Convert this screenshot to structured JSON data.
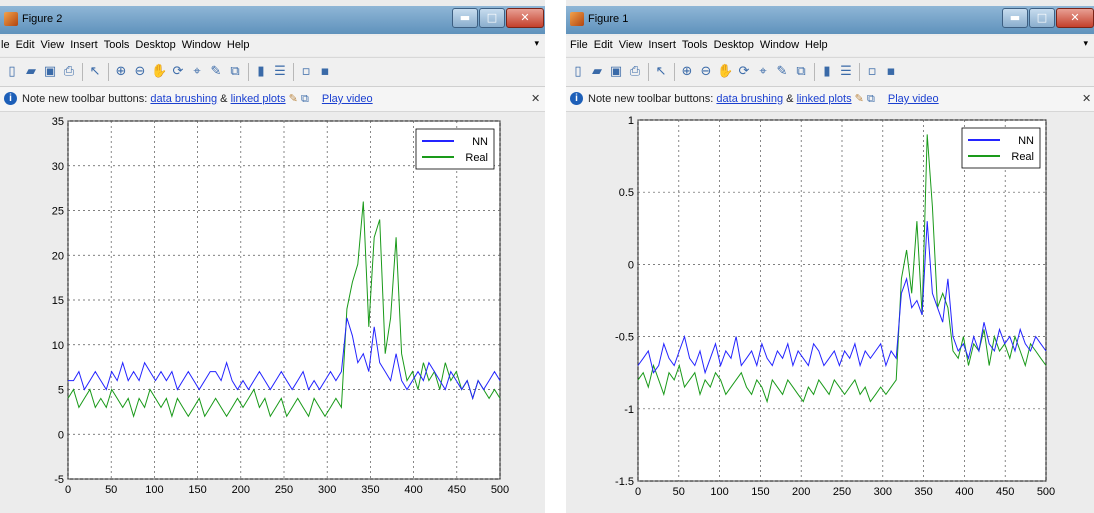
{
  "windows": [
    {
      "title": "Figure 2",
      "menu": [
        "le",
        "Edit",
        "View",
        "Insert",
        "Tools",
        "Desktop",
        "Window",
        "Help"
      ],
      "note": {
        "prefix": "Note new toolbar buttons:",
        "link1": "data brushing",
        "amp": "&",
        "link2": "linked plots",
        "video": "Play video"
      },
      "chart_data": {
        "type": "line",
        "xlim": [
          0,
          500
        ],
        "ylim": [
          -5,
          35
        ],
        "xticks": [
          0,
          50,
          100,
          150,
          200,
          250,
          300,
          350,
          400,
          450,
          500
        ],
        "yticks": [
          -5,
          0,
          5,
          10,
          15,
          20,
          25,
          30,
          35
        ],
        "grid": true,
        "legend_position": "top-right",
        "series": [
          {
            "name": "NN",
            "color": "#2424ff",
            "values": [
              6,
              6,
              7,
              5,
              6,
              7,
              6,
              5,
              7,
              6,
              8,
              6,
              7,
              6,
              8,
              7,
              6,
              7,
              6,
              7,
              5,
              6,
              7,
              6,
              5,
              6,
              7,
              7,
              6,
              8,
              6,
              5,
              6,
              5,
              6,
              7,
              6,
              5,
              6,
              7,
              6,
              5,
              6,
              7,
              5,
              6,
              5,
              6,
              7,
              6,
              7,
              13,
              11,
              8,
              9,
              7,
              12,
              8,
              7,
              6,
              9,
              6,
              5,
              6,
              7,
              6,
              8,
              7,
              6,
              5,
              7,
              6,
              5,
              6,
              4,
              6,
              5,
              6,
              7,
              6
            ]
          },
          {
            "name": "Real",
            "color": "#1a9a1a",
            "values": [
              4,
              5,
              3,
              4,
              5,
              3,
              4,
              3,
              5,
              4,
              3,
              4,
              2,
              4,
              3,
              5,
              4,
              3,
              4,
              2,
              4,
              3,
              2,
              3,
              4,
              2,
              3,
              4,
              3,
              2,
              3,
              4,
              3,
              4,
              5,
              3,
              4,
              2,
              3,
              4,
              2,
              3,
              4,
              3,
              2,
              4,
              3,
              2,
              3,
              4,
              3,
              14,
              17,
              19,
              26,
              12,
              22,
              24,
              9,
              13,
              22,
              9,
              6,
              7,
              5,
              8,
              6,
              7,
              5,
              8,
              6,
              7,
              5,
              6,
              4,
              6,
              5,
              4,
              5,
              4
            ]
          }
        ]
      }
    },
    {
      "title": "Figure 1",
      "menu": [
        "File",
        "Edit",
        "View",
        "Insert",
        "Tools",
        "Desktop",
        "Window",
        "Help"
      ],
      "note": {
        "prefix": "Note new toolbar buttons:",
        "link1": "data brushing",
        "amp": "&",
        "link2": "linked plots",
        "video": "Play video"
      },
      "chart_data": {
        "type": "line",
        "xlim": [
          0,
          500
        ],
        "ylim": [
          -1.5,
          1
        ],
        "xticks": [
          0,
          50,
          100,
          150,
          200,
          250,
          300,
          350,
          400,
          450,
          500
        ],
        "yticks": [
          -1.5,
          -1,
          -0.5,
          0,
          0.5,
          1
        ],
        "grid": true,
        "legend_position": "top-right",
        "series": [
          {
            "name": "NN",
            "color": "#2424ff",
            "values": [
              -0.7,
              -0.65,
              -0.6,
              -0.75,
              -0.7,
              -0.55,
              -0.65,
              -0.7,
              -0.6,
              -0.5,
              -0.65,
              -0.7,
              -0.6,
              -0.75,
              -0.65,
              -0.55,
              -0.7,
              -0.6,
              -0.65,
              -0.5,
              -0.7,
              -0.65,
              -0.6,
              -0.7,
              -0.55,
              -0.65,
              -0.7,
              -0.6,
              -0.65,
              -0.55,
              -0.7,
              -0.6,
              -0.65,
              -0.7,
              -0.55,
              -0.6,
              -0.7,
              -0.65,
              -0.6,
              -0.7,
              -0.6,
              -0.65,
              -0.55,
              -0.7,
              -0.6,
              -0.65,
              -0.6,
              -0.55,
              -0.7,
              -0.6,
              -0.65,
              -0.2,
              -0.1,
              -0.3,
              -0.25,
              -0.35,
              0.3,
              -0.2,
              -0.3,
              -0.4,
              -0.1,
              -0.5,
              -0.6,
              -0.55,
              -0.65,
              -0.5,
              -0.6,
              -0.4,
              -0.55,
              -0.6,
              -0.45,
              -0.55,
              -0.5,
              -0.6,
              -0.45,
              -0.55,
              -0.6,
              -0.5,
              -0.55,
              -0.6
            ]
          },
          {
            "name": "Real",
            "color": "#1a9a1a",
            "values": [
              -0.8,
              -0.75,
              -0.85,
              -0.7,
              -0.8,
              -0.9,
              -0.75,
              -0.8,
              -0.7,
              -0.85,
              -0.8,
              -0.75,
              -0.9,
              -0.8,
              -0.85,
              -0.75,
              -0.8,
              -0.9,
              -0.85,
              -0.8,
              -0.75,
              -0.85,
              -0.9,
              -0.8,
              -0.85,
              -0.95,
              -0.8,
              -0.85,
              -0.9,
              -0.8,
              -0.85,
              -0.9,
              -0.95,
              -0.85,
              -0.9,
              -0.8,
              -0.85,
              -0.9,
              -0.8,
              -0.85,
              -0.9,
              -0.85,
              -0.8,
              -0.9,
              -0.85,
              -0.95,
              -0.9,
              -0.85,
              -0.9,
              -0.85,
              -0.8,
              -0.1,
              0.1,
              -0.2,
              0.3,
              -0.35,
              0.9,
              0.4,
              -0.3,
              -0.2,
              -0.3,
              -0.6,
              -0.65,
              -0.5,
              -0.7,
              -0.55,
              -0.6,
              -0.45,
              -0.7,
              -0.5,
              -0.6,
              -0.55,
              -0.65,
              -0.5,
              -0.6,
              -0.7,
              -0.55,
              -0.6,
              -0.65,
              -0.7
            ]
          }
        ]
      }
    }
  ],
  "colors": {
    "titlebar": "#5f92bc",
    "plot_bg": "#ffffff",
    "grid": "#000000",
    "link": "#1a3fd0"
  },
  "icons": [
    "new-file-icon",
    "open-folder-icon",
    "save-icon",
    "print-icon",
    "pointer-icon",
    "zoom-in-icon",
    "zoom-out-icon",
    "pan-icon",
    "rotate-icon",
    "data-cursor-icon",
    "brush-icon",
    "link-plot-icon",
    "colorbar-icon",
    "legend-icon",
    "hide-plot-tools-icon",
    "show-plot-tools-icon"
  ]
}
